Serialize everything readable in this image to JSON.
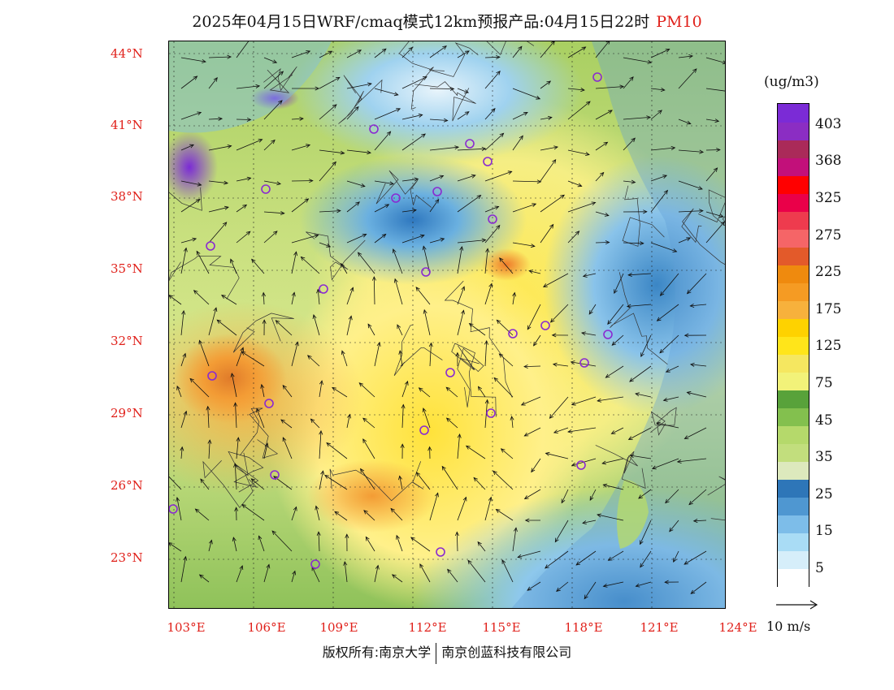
{
  "title": {
    "text": "2025年04月15日WRF/cmaq模式12km预报产品:04月15日22时",
    "pollutant": "PM10",
    "pollutant_color": "#e0201a"
  },
  "lat_labels": [
    "44°N",
    "41°N",
    "38°N",
    "35°N",
    "32°N",
    "29°N",
    "26°N",
    "23°N"
  ],
  "lon_labels": [
    "103°E",
    "106°E",
    "109°E",
    "112°E",
    "115°E",
    "118°E",
    "121°E",
    "124°E"
  ],
  "axis_label_color": "#e0201a",
  "colorbar": {
    "unit": "(ug/m3)",
    "colors": [
      "#ffffff",
      "#d6eefa",
      "#a9dcf5",
      "#7dbde9",
      "#4f97d1",
      "#2e76b8",
      "#dde9bd",
      "#c2de7d",
      "#b5d96b",
      "#83c04e",
      "#58a23a",
      "#f2f279",
      "#f5e760",
      "#ffe51a",
      "#fed200",
      "#f7b13c",
      "#f59b23",
      "#ef8a0e",
      "#e35a2a",
      "#f56567",
      "#ee3b4e",
      "#ea0049",
      "#ff0000",
      "#c2107a",
      "#aa2a59",
      "#8b2dc3",
      "#7b2bd6"
    ],
    "labels": [
      "5",
      "15",
      "25",
      "35",
      "45",
      "75",
      "125",
      "175",
      "225",
      "275",
      "325",
      "368",
      "403"
    ]
  },
  "stations_color": "#8a2ad1",
  "wind_scale": {
    "label": "10 m/s"
  },
  "copyright": {
    "left": "版权所有:南京大学",
    "right": "南京创蓝科技有限公司"
  }
}
